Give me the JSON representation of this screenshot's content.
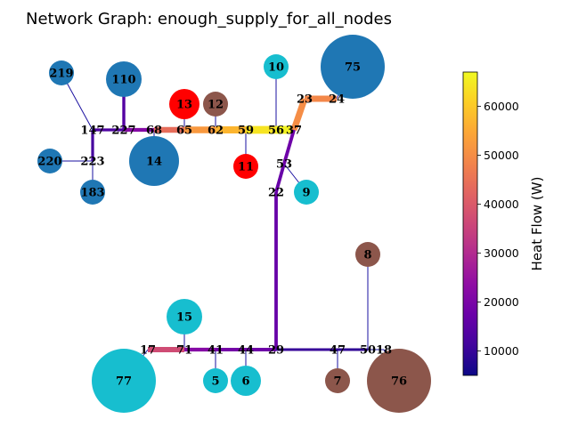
{
  "title": "Network Graph: enough_supply_for_all_nodes",
  "colorbar": {
    "label": "Heat Flow (W)",
    "min": 5000,
    "max": 67000,
    "ticks": [
      10000,
      20000,
      30000,
      40000,
      50000,
      60000
    ],
    "colormap": "plasma"
  },
  "colors": {
    "blue": "#1f77b4",
    "brown": "#8c564b",
    "cyan": "#17becf",
    "red": "#ff0000",
    "thin_edge": "#1a10a0"
  },
  "nodes": [
    {
      "id": "219",
      "type": "blue",
      "size": "small"
    },
    {
      "id": "110",
      "type": "blue",
      "size": "medium"
    },
    {
      "id": "147",
      "type": "junction"
    },
    {
      "id": "227",
      "type": "junction"
    },
    {
      "id": "68",
      "type": "junction"
    },
    {
      "id": "65",
      "type": "junction"
    },
    {
      "id": "62",
      "type": "junction"
    },
    {
      "id": "59",
      "type": "junction"
    },
    {
      "id": "56",
      "type": "junction"
    },
    {
      "id": "37",
      "type": "junction"
    },
    {
      "id": "23",
      "type": "junction"
    },
    {
      "id": "24",
      "type": "junction"
    },
    {
      "id": "75",
      "type": "blue",
      "size": "large"
    },
    {
      "id": "10",
      "type": "cyan",
      "size": "small"
    },
    {
      "id": "13",
      "type": "red",
      "size": "medium"
    },
    {
      "id": "12",
      "type": "brown",
      "size": "small"
    },
    {
      "id": "11",
      "type": "red",
      "size": "small"
    },
    {
      "id": "14",
      "type": "blue",
      "size": "large"
    },
    {
      "id": "220",
      "type": "blue",
      "size": "small"
    },
    {
      "id": "223",
      "type": "junction"
    },
    {
      "id": "183",
      "type": "blue",
      "size": "small"
    },
    {
      "id": "53",
      "type": "junction"
    },
    {
      "id": "22",
      "type": "junction"
    },
    {
      "id": "9",
      "type": "cyan",
      "size": "small"
    },
    {
      "id": "8",
      "type": "brown",
      "size": "small"
    },
    {
      "id": "15",
      "type": "cyan",
      "size": "medium"
    },
    {
      "id": "17",
      "type": "junction"
    },
    {
      "id": "71",
      "type": "junction"
    },
    {
      "id": "41",
      "type": "junction"
    },
    {
      "id": "44",
      "type": "junction"
    },
    {
      "id": "29",
      "type": "junction"
    },
    {
      "id": "47",
      "type": "junction"
    },
    {
      "id": "50",
      "type": "junction"
    },
    {
      "id": "18",
      "type": "junction"
    },
    {
      "id": "77",
      "type": "cyan",
      "size": "large"
    },
    {
      "id": "5",
      "type": "cyan",
      "size": "small"
    },
    {
      "id": "6",
      "type": "cyan",
      "size": "small"
    },
    {
      "id": "7",
      "type": "brown",
      "size": "small"
    },
    {
      "id": "76",
      "type": "brown",
      "size": "large"
    }
  ],
  "edges": [
    {
      "from": "147",
      "to": "227",
      "flow": 13000
    },
    {
      "from": "227",
      "to": "68",
      "flow": 22000
    },
    {
      "from": "68",
      "to": "65",
      "flow": 44000
    },
    {
      "from": "65",
      "to": "62",
      "flow": 52000
    },
    {
      "from": "62",
      "to": "59",
      "flow": 57000
    },
    {
      "from": "59",
      "to": "56",
      "flow": 64000
    },
    {
      "from": "56",
      "to": "37",
      "flow": 66000
    },
    {
      "from": "37",
      "to": "23",
      "flow": 50000
    },
    {
      "from": "23",
      "to": "24",
      "flow": 49000
    },
    {
      "from": "37",
      "to": "53",
      "flow": 18000
    },
    {
      "from": "53",
      "to": "22",
      "flow": 17000
    },
    {
      "from": "22",
      "to": "29",
      "flow": 17000
    },
    {
      "from": "147",
      "to": "223",
      "flow": 12000
    },
    {
      "from": "29",
      "to": "44",
      "flow": 18000
    },
    {
      "from": "44",
      "to": "41",
      "flow": 19000
    },
    {
      "from": "41",
      "to": "71",
      "flow": 22000
    },
    {
      "from": "71",
      "to": "17",
      "flow": 37000
    },
    {
      "from": "29",
      "to": "47",
      "flow": 10000
    },
    {
      "from": "47",
      "to": "50",
      "flow": 9000
    },
    {
      "from": "227",
      "to": "110",
      "flow": 14000
    }
  ],
  "connectors": [
    [
      "219",
      "147"
    ],
    [
      "220",
      "223"
    ],
    [
      "223",
      "183"
    ],
    [
      "68",
      "14"
    ],
    [
      "65",
      "13"
    ],
    [
      "62",
      "12"
    ],
    [
      "59",
      "11"
    ],
    [
      "56",
      "10"
    ],
    [
      "24",
      "75"
    ],
    [
      "53",
      "9"
    ],
    [
      "50",
      "8"
    ],
    [
      "71",
      "15"
    ],
    [
      "17",
      "77"
    ],
    [
      "41",
      "5"
    ],
    [
      "44",
      "6"
    ],
    [
      "47",
      "7"
    ],
    [
      "18",
      "76"
    ],
    [
      "50",
      "18"
    ]
  ]
}
